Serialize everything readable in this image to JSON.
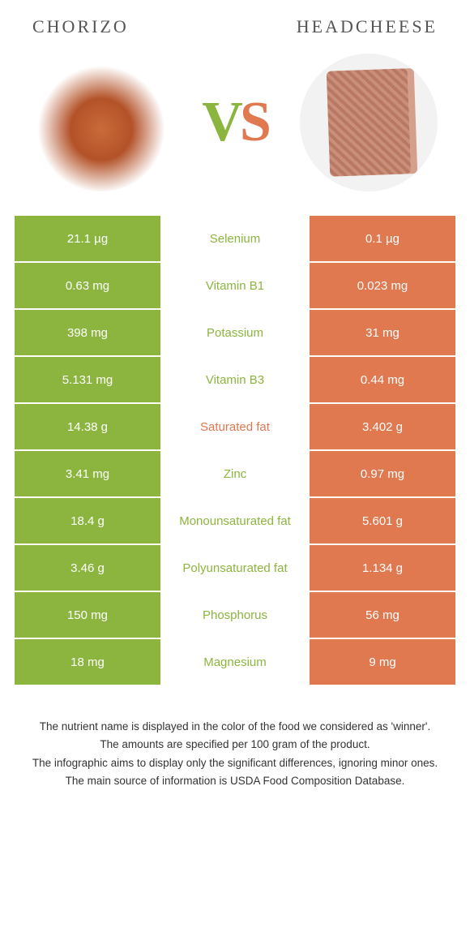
{
  "header": {
    "left": "CHORIZO",
    "right": "HEADCHEESE"
  },
  "vs": {
    "v": "V",
    "s": "S"
  },
  "colors": {
    "left": "#8cb53f",
    "right": "#e07850",
    "background": "#ffffff",
    "text": "#333333"
  },
  "rows": [
    {
      "left": "21.1 µg",
      "label": "Selenium",
      "right": "0.1 µg",
      "winner": "left"
    },
    {
      "left": "0.63 mg",
      "label": "Vitamin B1",
      "right": "0.023 mg",
      "winner": "left"
    },
    {
      "left": "398 mg",
      "label": "Potassium",
      "right": "31 mg",
      "winner": "left"
    },
    {
      "left": "5.131 mg",
      "label": "Vitamin B3",
      "right": "0.44 mg",
      "winner": "left"
    },
    {
      "left": "14.38 g",
      "label": "Saturated fat",
      "right": "3.402 g",
      "winner": "right"
    },
    {
      "left": "3.41 mg",
      "label": "Zinc",
      "right": "0.97 mg",
      "winner": "left"
    },
    {
      "left": "18.4 g",
      "label": "Monounsaturated fat",
      "right": "5.601 g",
      "winner": "left"
    },
    {
      "left": "3.46 g",
      "label": "Polyunsaturated fat",
      "right": "1.134 g",
      "winner": "left"
    },
    {
      "left": "150 mg",
      "label": "Phosphorus",
      "right": "56 mg",
      "winner": "left"
    },
    {
      "left": "18 mg",
      "label": "Magnesium",
      "right": "9 mg",
      "winner": "left"
    }
  ],
  "footer": {
    "l1": "The nutrient name is displayed in the color of the food we considered as 'winner'.",
    "l2": "The amounts are specified per 100 gram of the product.",
    "l3": "The infographic aims to display only the significant differences, ignoring minor ones.",
    "l4": "The main source of information is USDA Food Composition Database."
  }
}
